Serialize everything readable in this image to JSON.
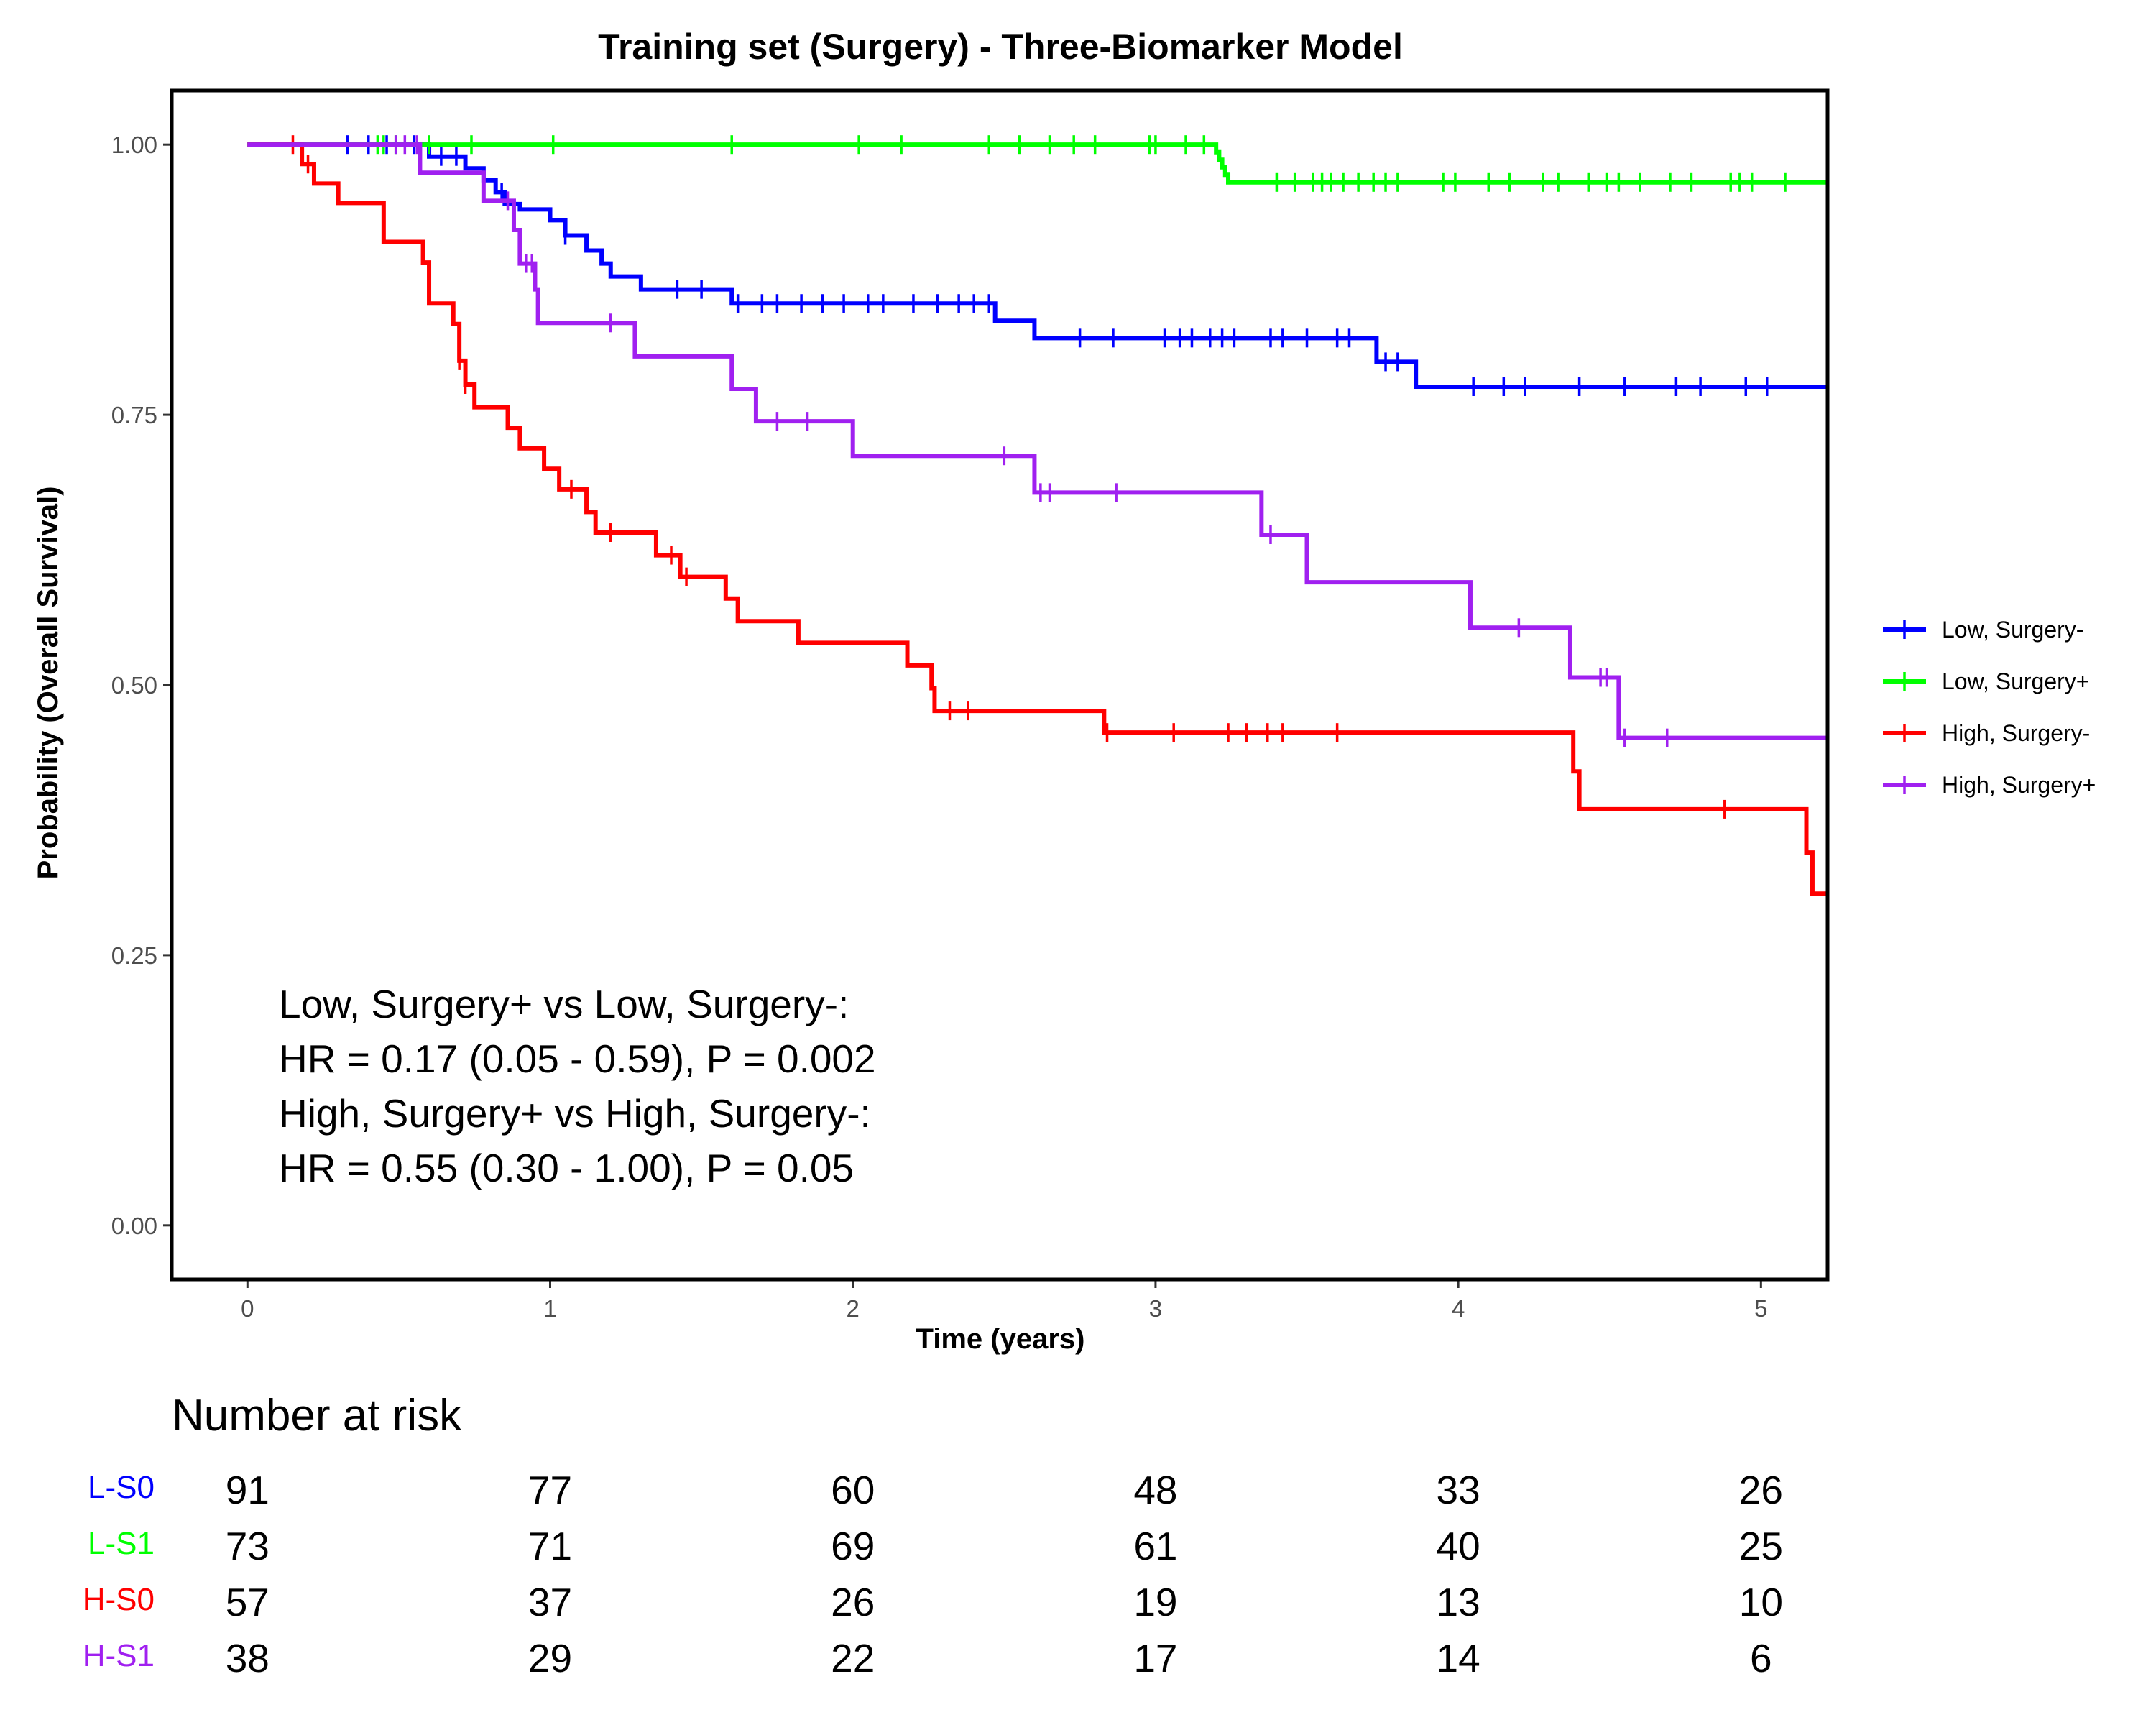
{
  "chart_data": {
    "type": "line",
    "subtype": "kaplan-meier step curves",
    "title": "Training set (Surgery) - Three-Biomarker Model",
    "xlabel": "Time (years)",
    "ylabel": "Probability (Overall Survival)",
    "xlim": [
      -0.25,
      5.22
    ],
    "ylim": [
      -0.05,
      1.05
    ],
    "xticks": [
      0,
      1,
      2,
      3,
      4,
      5
    ],
    "yticks": [
      0.0,
      0.25,
      0.5,
      0.75,
      1.0
    ],
    "ytick_labels": [
      "0.00",
      "0.25",
      "0.50",
      "0.75",
      "1.00"
    ],
    "grid": false,
    "legend_position": "right",
    "series": [
      {
        "name": "Low, Surgery-",
        "color": "#0000ff",
        "steps": [
          [
            0,
            1.0
          ],
          [
            0.6,
            0.989
          ],
          [
            0.72,
            0.978
          ],
          [
            0.78,
            0.967
          ],
          [
            0.82,
            0.956
          ],
          [
            0.85,
            0.945
          ],
          [
            0.9,
            0.94
          ],
          [
            1.0,
            0.93
          ],
          [
            1.05,
            0.916
          ],
          [
            1.12,
            0.902
          ],
          [
            1.17,
            0.89
          ],
          [
            1.2,
            0.878
          ],
          [
            1.3,
            0.866
          ],
          [
            1.6,
            0.853
          ],
          [
            2.47,
            0.837
          ],
          [
            2.6,
            0.821
          ],
          [
            3.73,
            0.799
          ],
          [
            3.86,
            0.776
          ]
        ],
        "censor_times": [
          0.33,
          0.4,
          0.46,
          0.55,
          0.64,
          0.69,
          0.84,
          1.05,
          1.42,
          1.5,
          1.62,
          1.7,
          1.75,
          1.83,
          1.9,
          1.97,
          2.05,
          2.1,
          2.2,
          2.28,
          2.35,
          2.4,
          2.45,
          2.75,
          2.86,
          3.03,
          3.08,
          3.12,
          3.18,
          3.22,
          3.26,
          3.38,
          3.42,
          3.5,
          3.6,
          3.64,
          3.76,
          3.8,
          4.05,
          4.15,
          4.22,
          4.4,
          4.55,
          4.72,
          4.8,
          4.95,
          5.02
        ]
      },
      {
        "name": "Low, Surgery+",
        "color": "#00ff00",
        "steps": [
          [
            0,
            1.0
          ],
          [
            3.2,
            0.993
          ],
          [
            3.21,
            0.986
          ],
          [
            3.22,
            0.979
          ],
          [
            3.23,
            0.972
          ],
          [
            3.24,
            0.965
          ]
        ],
        "censor_times": [
          0.43,
          0.45,
          0.49,
          0.6,
          0.74,
          1.01,
          1.6,
          2.02,
          2.16,
          2.45,
          2.55,
          2.65,
          2.73,
          2.8,
          2.98,
          3.0,
          3.1,
          3.16,
          3.4,
          3.46,
          3.52,
          3.55,
          3.58,
          3.62,
          3.67,
          3.72,
          3.76,
          3.8,
          3.95,
          3.99,
          4.1,
          4.17,
          4.28,
          4.33,
          4.43,
          4.49,
          4.53,
          4.6,
          4.7,
          4.77,
          4.9,
          4.93,
          4.97,
          5.08
        ]
      },
      {
        "name": "High, Surgery-",
        "color": "#ff0000",
        "steps": [
          [
            0,
            1.0
          ],
          [
            0.18,
            0.982
          ],
          [
            0.22,
            0.964
          ],
          [
            0.3,
            0.946
          ],
          [
            0.45,
            0.91
          ],
          [
            0.58,
            0.891
          ],
          [
            0.6,
            0.853
          ],
          [
            0.68,
            0.834
          ],
          [
            0.7,
            0.8
          ],
          [
            0.72,
            0.778
          ],
          [
            0.75,
            0.757
          ],
          [
            0.86,
            0.738
          ],
          [
            0.9,
            0.719
          ],
          [
            0.98,
            0.7
          ],
          [
            1.03,
            0.681
          ],
          [
            1.12,
            0.66
          ],
          [
            1.15,
            0.641
          ],
          [
            1.35,
            0.62
          ],
          [
            1.43,
            0.6
          ],
          [
            1.58,
            0.58
          ],
          [
            1.62,
            0.559
          ],
          [
            1.82,
            0.539
          ],
          [
            2.18,
            0.518
          ],
          [
            2.26,
            0.497
          ],
          [
            2.27,
            0.476
          ],
          [
            2.83,
            0.456
          ],
          [
            4.38,
            0.42
          ],
          [
            4.4,
            0.385
          ],
          [
            5.15,
            0.345
          ],
          [
            5.17,
            0.307
          ]
        ],
        "censor_times": [
          0.15,
          0.2,
          0.7,
          0.72,
          1.07,
          1.2,
          1.4,
          1.45,
          2.32,
          2.38,
          2.84,
          3.06,
          3.24,
          3.3,
          3.37,
          3.42,
          3.6,
          4.88
        ]
      },
      {
        "name": "High, Surgery+",
        "color": "#a020f0",
        "steps": [
          [
            0,
            1.0
          ],
          [
            0.57,
            0.974
          ],
          [
            0.78,
            0.948
          ],
          [
            0.88,
            0.921
          ],
          [
            0.9,
            0.89
          ],
          [
            0.95,
            0.866
          ],
          [
            0.96,
            0.835
          ],
          [
            1.28,
            0.804
          ],
          [
            1.6,
            0.774
          ],
          [
            1.68,
            0.744
          ],
          [
            2.0,
            0.712
          ],
          [
            2.6,
            0.678
          ],
          [
            3.35,
            0.639
          ],
          [
            3.5,
            0.595
          ],
          [
            4.04,
            0.553
          ],
          [
            4.37,
            0.507
          ],
          [
            4.53,
            0.451
          ]
        ],
        "censor_times": [
          0.49,
          0.52,
          0.56,
          0.86,
          0.92,
          0.94,
          1.2,
          1.75,
          1.85,
          2.5,
          2.62,
          2.65,
          2.87,
          3.38,
          4.2,
          4.47,
          4.49,
          4.55,
          4.69
        ]
      }
    ],
    "annotations": [
      "Low, Surgery+ vs Low, Surgery-:",
      "HR = 0.17 (0.05 - 0.59), P = 0.002",
      "High, Surgery+ vs High, Surgery-:",
      "HR = 0.55 (0.30 - 1.00), P = 0.05"
    ],
    "risk_table": {
      "title": "Number at risk",
      "times": [
        0,
        1,
        2,
        3,
        4,
        5
      ],
      "rows": [
        {
          "label": "L-S0",
          "color": "#0000ff",
          "values": [
            91,
            77,
            60,
            48,
            33,
            26
          ]
        },
        {
          "label": "L-S1",
          "color": "#00ff00",
          "values": [
            73,
            71,
            69,
            61,
            40,
            25
          ]
        },
        {
          "label": "H-S0",
          "color": "#ff0000",
          "values": [
            57,
            37,
            26,
            19,
            13,
            10
          ]
        },
        {
          "label": "H-S1",
          "color": "#a020f0",
          "values": [
            38,
            29,
            22,
            17,
            14,
            6
          ]
        }
      ]
    }
  }
}
